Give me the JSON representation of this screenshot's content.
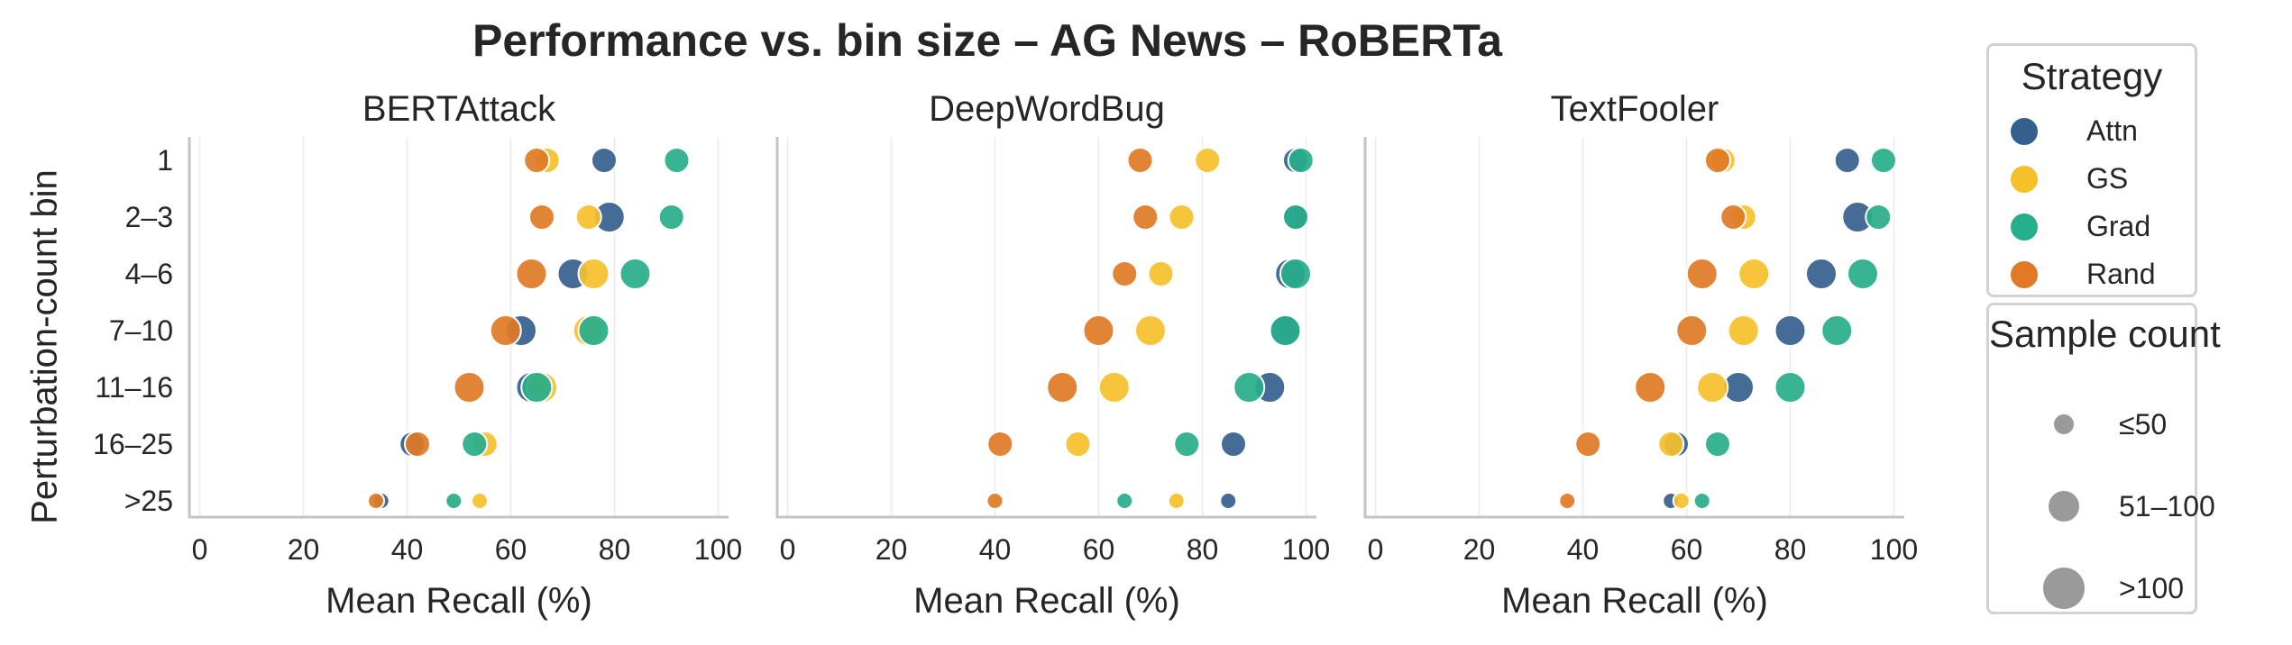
{
  "chart_data": {
    "type": "scatter",
    "title": "Performance vs. bin size – AG News – RoBERTa",
    "ylabel": "Perturbation-count bin",
    "xlabel": "Mean Recall (%)",
    "xlim": [
      -2,
      102
    ],
    "xticks": [
      "0",
      "20",
      "40",
      "60",
      "80",
      "100"
    ],
    "grid": "vertical",
    "bins": [
      "1",
      "2–3",
      "4–6",
      "7–10",
      "11–16",
      "16–25",
      ">25"
    ],
    "strategies": [
      {
        "name": "Attn",
        "color": "#355f8d"
      },
      {
        "name": "GS",
        "color": "#f6c02b"
      },
      {
        "name": "Grad",
        "color": "#27ae8a"
      },
      {
        "name": "Rand",
        "color": "#e07a25"
      }
    ],
    "size_categories": [
      "≤50",
      "51–100",
      ">100"
    ],
    "panels": [
      {
        "title": "BERTAttack",
        "series": [
          {
            "name": "Attn",
            "values": [
              78,
              79,
              72,
              62,
              64,
              41,
              35
            ],
            "size": [
              1,
              2,
              2,
              2,
              2,
              1,
              0
            ]
          },
          {
            "name": "GS",
            "values": [
              67,
              75,
              76,
              75,
              66,
              55,
              54
            ],
            "size": [
              1,
              1,
              2,
              2,
              2,
              1,
              0
            ]
          },
          {
            "name": "Grad",
            "values": [
              92,
              91,
              84,
              76,
              65,
              53,
              49
            ],
            "size": [
              1,
              1,
              2,
              2,
              2,
              1,
              0
            ]
          },
          {
            "name": "Rand",
            "values": [
              65,
              66,
              64,
              59,
              52,
              42,
              34
            ],
            "size": [
              1,
              1,
              2,
              2,
              2,
              1,
              0
            ]
          }
        ]
      },
      {
        "title": "DeepWordBug",
        "series": [
          {
            "name": "Attn",
            "values": [
              98,
              98,
              97,
              96,
              93,
              86,
              85
            ],
            "size": [
              1,
              1,
              2,
              2,
              2,
              1,
              0
            ]
          },
          {
            "name": "GS",
            "values": [
              81,
              76,
              72,
              70,
              63,
              56,
              75
            ],
            "size": [
              1,
              1,
              1,
              2,
              2,
              1,
              0
            ]
          },
          {
            "name": "Grad",
            "values": [
              99,
              98,
              98,
              96,
              89,
              77,
              65
            ],
            "size": [
              1,
              1,
              2,
              2,
              2,
              1,
              0
            ]
          },
          {
            "name": "Rand",
            "values": [
              68,
              69,
              65,
              60,
              53,
              41,
              40
            ],
            "size": [
              1,
              1,
              1,
              2,
              2,
              1,
              0
            ]
          }
        ]
      },
      {
        "title": "TextFooler",
        "series": [
          {
            "name": "Attn",
            "values": [
              91,
              93,
              86,
              80,
              70,
              58,
              57
            ],
            "size": [
              1,
              2,
              2,
              2,
              2,
              1,
              0
            ]
          },
          {
            "name": "GS",
            "values": [
              67,
              71,
              73,
              71,
              65,
              57,
              59
            ],
            "size": [
              1,
              1,
              2,
              2,
              2,
              1,
              0
            ]
          },
          {
            "name": "Grad",
            "values": [
              98,
              97,
              94,
              89,
              80,
              66,
              63
            ],
            "size": [
              1,
              1,
              2,
              2,
              2,
              1,
              0
            ]
          },
          {
            "name": "Rand",
            "values": [
              66,
              69,
              63,
              61,
              53,
              41,
              37
            ],
            "size": [
              1,
              1,
              2,
              2,
              2,
              1,
              0
            ]
          }
        ]
      }
    ]
  },
  "legend_strategy": {
    "title": "Strategy",
    "items": [
      {
        "label": "Attn",
        "color": "#355f8d"
      },
      {
        "label": "GS",
        "color": "#f6c02b"
      },
      {
        "label": "Grad",
        "color": "#27ae8a"
      },
      {
        "label": "Rand",
        "color": "#e07a25"
      }
    ]
  },
  "legend_size": {
    "title": "Sample count",
    "items": [
      "≤50",
      "51–100",
      ">100"
    ],
    "color": "#9a9a9a"
  }
}
